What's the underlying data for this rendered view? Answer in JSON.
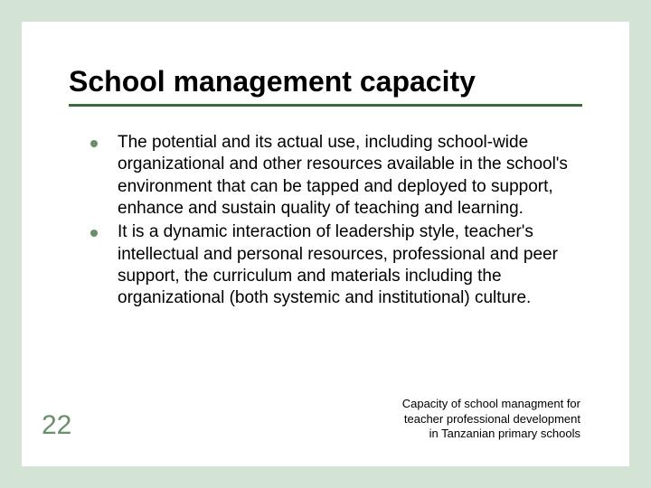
{
  "slide": {
    "title": "School management capacity",
    "bullets": [
      "The potential and its actual use, including school-wide organizational and other resources available in the school's environment that can be tapped and deployed to support, enhance and sustain quality of teaching and learning.",
      "It is a dynamic interaction of leadership style, teacher's intellectual and personal resources, professional and peer support, the curriculum and materials including the organizational (both systemic and institutional) culture."
    ],
    "page_number": "22",
    "footer_lines": [
      "Capacity of school managment for",
      "teacher professional development",
      "in Tanzanian primary schools"
    ]
  },
  "colors": {
    "background": "#d4e4d4",
    "slide_bg": "#ffffff",
    "underline": "#3b6b3b",
    "bullet": "#6b8e6b",
    "page_number": "#6b8e6b",
    "text": "#000000"
  }
}
